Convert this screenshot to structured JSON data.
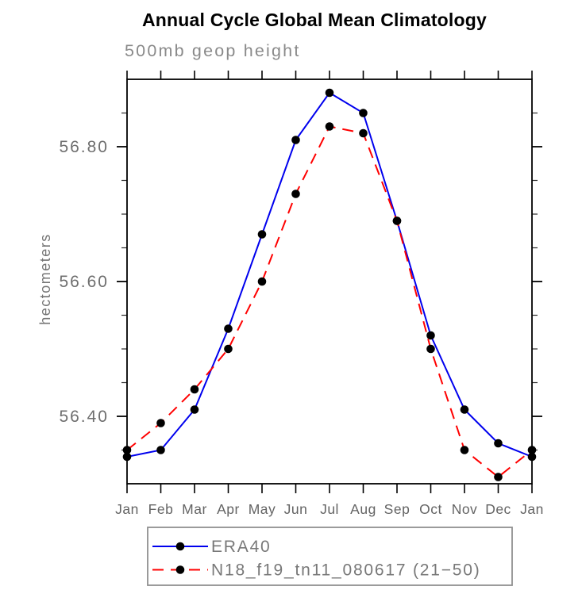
{
  "chart": {
    "title": "Annual Cycle Global Mean Climatology",
    "subtitle": "500mb geop height",
    "ylabel": "hectometers"
  },
  "chart_data": {
    "type": "line",
    "title": "Annual Cycle Global Mean Climatology",
    "subtitle": "500mb geop height",
    "xlabel": "",
    "ylabel": "hectometers",
    "categories": [
      "Jan",
      "Feb",
      "Mar",
      "Apr",
      "May",
      "Jun",
      "Jul",
      "Aug",
      "Sep",
      "Oct",
      "Nov",
      "Dec",
      "Jan"
    ],
    "series": [
      {
        "name": "ERA40",
        "line_style": "solid",
        "color": "#0000ee",
        "marker": "filled-circle",
        "marker_color": "#000000",
        "values": [
          56.34,
          56.35,
          56.41,
          56.53,
          56.67,
          56.81,
          56.88,
          56.85,
          56.69,
          56.52,
          56.41,
          56.36,
          56.34
        ]
      },
      {
        "name": "N18_f19_tn11_080617 (21−50)",
        "line_style": "dashed",
        "color": "#ff0000",
        "marker": "filled-circle",
        "marker_color": "#000000",
        "values": [
          56.35,
          56.39,
          56.44,
          56.5,
          56.6,
          56.73,
          56.83,
          56.82,
          56.69,
          56.5,
          56.35,
          56.31,
          56.35
        ]
      }
    ],
    "ylim": [
      56.3,
      56.9
    ],
    "ytick_major_values": [
      56.4,
      56.6,
      56.8
    ],
    "ytick_major_labels": [
      "56.40",
      "56.60",
      "56.80"
    ],
    "ytick_minor_step": 0.05,
    "grid": false,
    "legend_position": "below-plot",
    "frame_color": "#000000",
    "axis_text_color": "#6e6e6e",
    "legend_text_color": "#787878",
    "legend_border_color": "#909090"
  }
}
